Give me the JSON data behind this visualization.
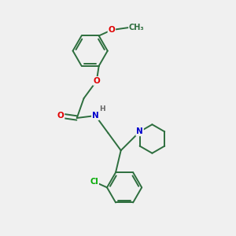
{
  "background_color": "#f0f0f0",
  "bond_color": "#2d6e3e",
  "atom_colors": {
    "O": "#e00000",
    "N": "#0000cc",
    "Cl": "#00aa00",
    "H": "#666666",
    "C": "#2d6e3e"
  },
  "figsize": [
    3.0,
    3.0
  ],
  "dpi": 100
}
